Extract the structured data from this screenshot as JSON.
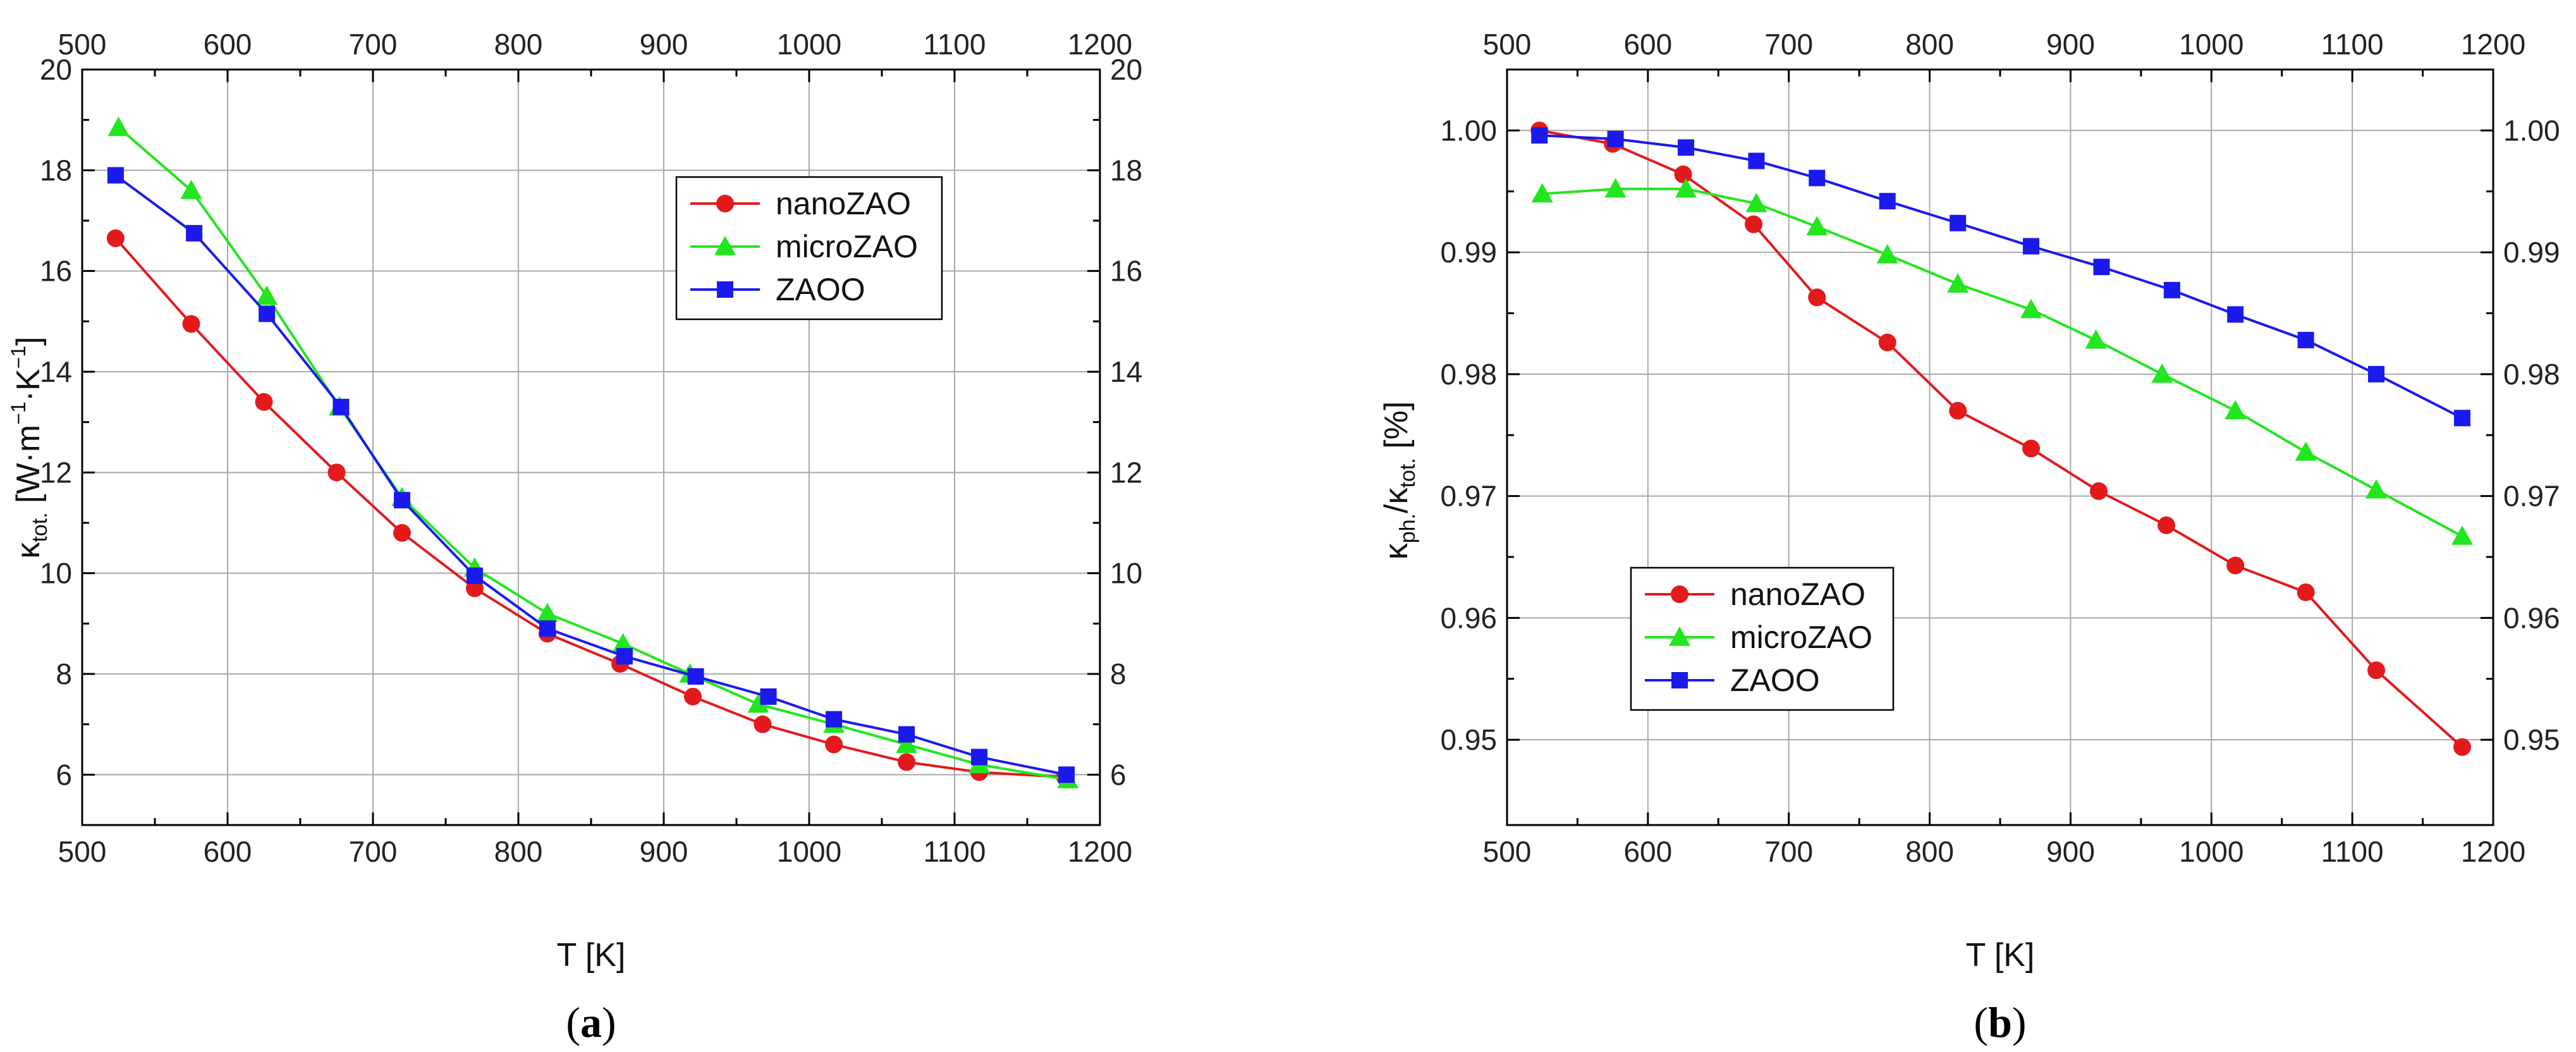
{
  "chart_data": [
    {
      "type": "line",
      "panel": "a",
      "xlabel": "T [K]",
      "ylabel": {
        "base": "κ",
        "sub": "tot.",
        "unit_prefix": " [W·m",
        "unit_exp1": "−1",
        "unit_mid": "·K",
        "unit_exp2": "−1",
        "unit_suffix": "]"
      },
      "xlim": [
        500,
        1200
      ],
      "ylim": [
        5,
        20
      ],
      "xticks": [
        500,
        600,
        700,
        800,
        900,
        1000,
        1100,
        1200
      ],
      "yticks": [
        6,
        8,
        10,
        12,
        14,
        16,
        18,
        20
      ],
      "grid": true,
      "legend_position": "upper-right",
      "series": [
        {
          "name": "nanoZAO",
          "color": "#e31a1c",
          "marker": "circle",
          "x": [
            523,
            575,
            625,
            675,
            720,
            770,
            820,
            870,
            920,
            968,
            1017,
            1067,
            1117,
            1176
          ],
          "y": [
            16.65,
            14.95,
            13.4,
            12.0,
            10.8,
            9.7,
            8.8,
            8.2,
            7.55,
            7.0,
            6.6,
            6.25,
            6.05,
            5.95
          ]
        },
        {
          "name": "microZAO",
          "color": "#22e61e",
          "marker": "triangle",
          "x": [
            525,
            575,
            627,
            677,
            720,
            770,
            820,
            872,
            918,
            965,
            1017,
            1067,
            1117,
            1178
          ],
          "y": [
            18.85,
            17.6,
            15.5,
            13.3,
            11.5,
            10.1,
            9.2,
            8.6,
            8.0,
            7.4,
            7.0,
            6.6,
            6.2,
            5.9
          ]
        },
        {
          "name": "ZAOO",
          "color": "#1a1aee",
          "marker": "square",
          "x": [
            523,
            577,
            627,
            678,
            720,
            770,
            820,
            873,
            922,
            972,
            1017,
            1067,
            1117,
            1177
          ],
          "y": [
            17.9,
            16.75,
            15.15,
            13.3,
            11.45,
            9.95,
            8.9,
            8.35,
            7.95,
            7.55,
            7.1,
            6.8,
            6.35,
            6.0
          ]
        }
      ]
    },
    {
      "type": "line",
      "panel": "b",
      "xlabel": "T [K]",
      "ylabel": {
        "num_base": "κ",
        "num_sub": "ph.",
        "slash": "/",
        "den_base": "κ",
        "den_sub": "tot.",
        "suffix": " [%]"
      },
      "xlim": [
        500,
        1200
      ],
      "ylim": [
        0.943,
        1.005
      ],
      "xticks": [
        500,
        600,
        700,
        800,
        900,
        1000,
        1100,
        1200
      ],
      "yticks": [
        0.95,
        0.96,
        0.97,
        0.98,
        0.99,
        1.0
      ],
      "ytick_labels": [
        "0.95",
        "0.96",
        "0.97",
        "0.98",
        "0.99",
        "1.00"
      ],
      "grid": true,
      "legend_position": "lower-left",
      "series": [
        {
          "name": "nanoZAO",
          "color": "#e31a1c",
          "marker": "circle",
          "x": [
            523,
            575,
            625,
            675,
            720,
            770,
            820,
            872,
            920,
            968,
            1017,
            1067,
            1117,
            1178
          ],
          "y": [
            1.0,
            0.9989,
            0.9964,
            0.9923,
            0.9863,
            0.9826,
            0.977,
            0.9739,
            0.9704,
            0.9676,
            0.9643,
            0.9621,
            0.9557,
            0.9494
          ]
        },
        {
          "name": "microZAO",
          "color": "#22e61e",
          "marker": "triangle",
          "x": [
            525,
            577,
            627,
            677,
            720,
            770,
            820,
            872,
            918,
            965,
            1017,
            1067,
            1117,
            1178
          ],
          "y": [
            0.9948,
            0.9952,
            0.9952,
            0.994,
            0.9921,
            0.9898,
            0.9874,
            0.9853,
            0.9828,
            0.98,
            0.977,
            0.9736,
            0.9705,
            0.9667
          ]
        },
        {
          "name": "ZAOO",
          "color": "#1a1aee",
          "marker": "square",
          "x": [
            523,
            577,
            627,
            677,
            720,
            770,
            820,
            872,
            922,
            972,
            1017,
            1067,
            1117,
            1178
          ],
          "y": [
            0.9996,
            0.9993,
            0.9986,
            0.9975,
            0.9961,
            0.9942,
            0.9924,
            0.9905,
            0.9888,
            0.9869,
            0.9849,
            0.9828,
            0.98,
            0.9764
          ]
        }
      ]
    }
  ],
  "captions": {
    "a": "a",
    "b": "b"
  }
}
